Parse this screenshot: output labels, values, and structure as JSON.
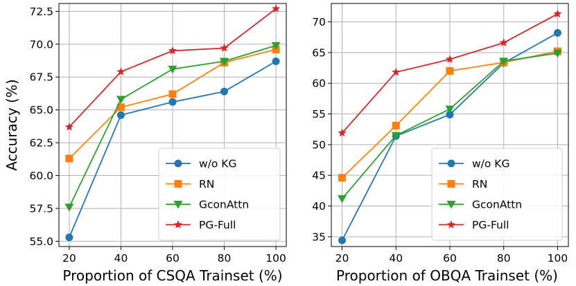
{
  "chart_data": [
    {
      "type": "line",
      "xlabel": "Proportion of CSQA Trainset (%)",
      "ylabel": "Accuracy (%)",
      "x": [
        20,
        40,
        60,
        80,
        100
      ],
      "xticks": [
        "20",
        "40",
        "60",
        "80",
        "100"
      ],
      "yticks": [
        "55.0",
        "57.5",
        "60.0",
        "62.5",
        "65.0",
        "67.5",
        "70.0",
        "72.5"
      ],
      "ytick_values": [
        55.0,
        57.5,
        60.0,
        62.5,
        65.0,
        67.5,
        70.0,
        72.5
      ],
      "xlim": [
        16,
        104
      ],
      "ylim": [
        54.6,
        73.1
      ],
      "grid": true,
      "legend_position": "lower-right",
      "series": [
        {
          "name": "w/o KG",
          "color": "#1f77b4",
          "marker": "circle",
          "values": [
            55.3,
            64.6,
            65.6,
            66.4,
            68.7
          ]
        },
        {
          "name": "RN",
          "color": "#ff7f0e",
          "marker": "square",
          "values": [
            61.3,
            65.2,
            66.2,
            68.6,
            69.6
          ]
        },
        {
          "name": "GconAttn",
          "color": "#2ca02c",
          "marker": "triangle-down",
          "values": [
            57.6,
            65.8,
            68.1,
            68.7,
            69.9
          ]
        },
        {
          "name": "PG-Full",
          "color": "#d62728",
          "marker": "star",
          "values": [
            63.7,
            67.9,
            69.5,
            69.7,
            72.7
          ]
        }
      ]
    },
    {
      "type": "line",
      "xlabel": "Proportion of OBQA Trainset (%)",
      "ylabel": "",
      "x": [
        20,
        40,
        60,
        80,
        100
      ],
      "xticks": [
        "20",
        "40",
        "60",
        "80",
        "100"
      ],
      "yticks": [
        "35",
        "40",
        "45",
        "50",
        "55",
        "60",
        "65",
        "70"
      ],
      "ytick_values": [
        35,
        40,
        45,
        50,
        55,
        60,
        65,
        70
      ],
      "xlim": [
        16,
        104
      ],
      "ylim": [
        33.4,
        73.0
      ],
      "grid": true,
      "legend_position": "lower-right",
      "series": [
        {
          "name": "w/o KG",
          "color": "#1f77b4",
          "marker": "circle",
          "values": [
            34.4,
            51.4,
            54.9,
            63.3,
            68.2
          ]
        },
        {
          "name": "RN",
          "color": "#ff7f0e",
          "marker": "square",
          "values": [
            44.6,
            53.1,
            62.0,
            63.4,
            65.2
          ]
        },
        {
          "name": "GconAttn",
          "color": "#2ca02c",
          "marker": "triangle-down",
          "values": [
            41.2,
            51.5,
            55.8,
            63.6,
            64.9
          ]
        },
        {
          "name": "PG-Full",
          "color": "#d62728",
          "marker": "star",
          "values": [
            51.9,
            61.8,
            63.9,
            66.6,
            71.3
          ]
        }
      ]
    }
  ]
}
